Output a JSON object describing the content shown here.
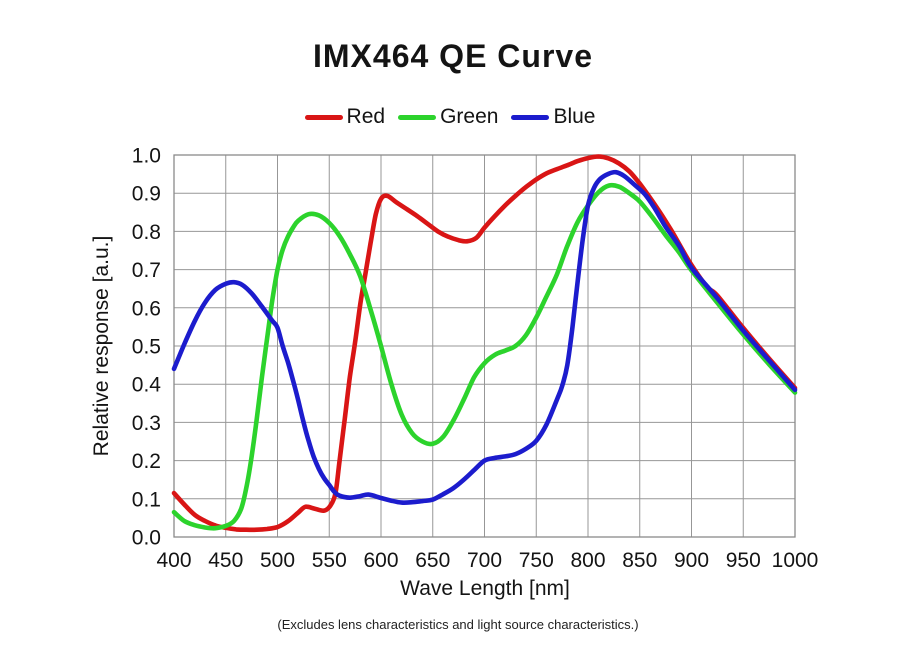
{
  "page": {
    "background": "#ffffff"
  },
  "chart_data": {
    "type": "line",
    "title": "IMX464 QE Curve",
    "xlabel": "Wave Length [nm]",
    "ylabel": "Relative response [a.u.]",
    "footnote": "(Excludes lens characteristics and light source characteristics.)",
    "xlim": [
      400,
      1000
    ],
    "ylim": [
      0.0,
      1.0
    ],
    "xticks": [
      "400",
      "450",
      "500",
      "550",
      "600",
      "650",
      "700",
      "750",
      "800",
      "850",
      "900",
      "950",
      "1000"
    ],
    "yticks": [
      "0.0",
      "0.1",
      "0.2",
      "0.3",
      "0.4",
      "0.5",
      "0.6",
      "0.7",
      "0.8",
      "0.9",
      "1.0"
    ],
    "grid": true,
    "grid_color": "#979797",
    "border_color": "#8a8a8a",
    "legend_position": "top",
    "series": [
      {
        "name": "Red",
        "color": "#d91515",
        "points": [
          [
            400,
            0.115
          ],
          [
            410,
            0.085
          ],
          [
            420,
            0.058
          ],
          [
            430,
            0.042
          ],
          [
            440,
            0.03
          ],
          [
            450,
            0.024
          ],
          [
            460,
            0.02
          ],
          [
            470,
            0.019
          ],
          [
            480,
            0.019
          ],
          [
            490,
            0.021
          ],
          [
            500,
            0.026
          ],
          [
            510,
            0.041
          ],
          [
            520,
            0.064
          ],
          [
            527,
            0.079
          ],
          [
            536,
            0.074
          ],
          [
            545,
            0.069
          ],
          [
            551,
            0.082
          ],
          [
            556,
            0.115
          ],
          [
            560,
            0.2
          ],
          [
            565,
            0.31
          ],
          [
            570,
            0.42
          ],
          [
            575,
            0.51
          ],
          [
            580,
            0.61
          ],
          [
            585,
            0.69
          ],
          [
            590,
            0.77
          ],
          [
            595,
            0.845
          ],
          [
            600,
            0.885
          ],
          [
            606,
            0.893
          ],
          [
            615,
            0.876
          ],
          [
            625,
            0.858
          ],
          [
            635,
            0.84
          ],
          [
            645,
            0.82
          ],
          [
            655,
            0.8
          ],
          [
            665,
            0.786
          ],
          [
            675,
            0.777
          ],
          [
            683,
            0.774
          ],
          [
            692,
            0.783
          ],
          [
            700,
            0.81
          ],
          [
            710,
            0.84
          ],
          [
            720,
            0.868
          ],
          [
            730,
            0.893
          ],
          [
            740,
            0.916
          ],
          [
            750,
            0.936
          ],
          [
            760,
            0.952
          ],
          [
            770,
            0.963
          ],
          [
            780,
            0.973
          ],
          [
            790,
            0.984
          ],
          [
            800,
            0.992
          ],
          [
            810,
            0.996
          ],
          [
            820,
            0.991
          ],
          [
            830,
            0.978
          ],
          [
            840,
            0.957
          ],
          [
            850,
            0.925
          ],
          [
            860,
            0.888
          ],
          [
            870,
            0.848
          ],
          [
            880,
            0.805
          ],
          [
            890,
            0.758
          ],
          [
            900,
            0.712
          ],
          [
            915,
            0.655
          ],
          [
            925,
            0.632
          ],
          [
            950,
            0.547
          ],
          [
            975,
            0.467
          ],
          [
            1000,
            0.39
          ]
        ]
      },
      {
        "name": "Green",
        "color": "#2cd32c",
        "points": [
          [
            400,
            0.065
          ],
          [
            410,
            0.042
          ],
          [
            420,
            0.031
          ],
          [
            430,
            0.025
          ],
          [
            440,
            0.023
          ],
          [
            450,
            0.029
          ],
          [
            458,
            0.042
          ],
          [
            465,
            0.075
          ],
          [
            470,
            0.13
          ],
          [
            475,
            0.21
          ],
          [
            480,
            0.31
          ],
          [
            485,
            0.42
          ],
          [
            490,
            0.52
          ],
          [
            495,
            0.62
          ],
          [
            500,
            0.7
          ],
          [
            505,
            0.752
          ],
          [
            510,
            0.786
          ],
          [
            515,
            0.81
          ],
          [
            520,
            0.828
          ],
          [
            530,
            0.845
          ],
          [
            540,
            0.842
          ],
          [
            550,
            0.822
          ],
          [
            560,
            0.788
          ],
          [
            570,
            0.74
          ],
          [
            580,
            0.682
          ],
          [
            590,
            0.595
          ],
          [
            600,
            0.5
          ],
          [
            610,
            0.4
          ],
          [
            620,
            0.32
          ],
          [
            630,
            0.272
          ],
          [
            640,
            0.25
          ],
          [
            650,
            0.244
          ],
          [
            660,
            0.262
          ],
          [
            670,
            0.305
          ],
          [
            680,
            0.36
          ],
          [
            690,
            0.418
          ],
          [
            700,
            0.455
          ],
          [
            710,
            0.477
          ],
          [
            720,
            0.488
          ],
          [
            730,
            0.5
          ],
          [
            740,
            0.528
          ],
          [
            750,
            0.575
          ],
          [
            760,
            0.63
          ],
          [
            770,
            0.688
          ],
          [
            780,
            0.762
          ],
          [
            790,
            0.825
          ],
          [
            800,
            0.868
          ],
          [
            810,
            0.902
          ],
          [
            820,
            0.92
          ],
          [
            830,
            0.917
          ],
          [
            840,
            0.9
          ],
          [
            850,
            0.878
          ],
          [
            862,
            0.838
          ],
          [
            875,
            0.79
          ],
          [
            888,
            0.745
          ],
          [
            900,
            0.698
          ],
          [
            925,
            0.613
          ],
          [
            950,
            0.53
          ],
          [
            975,
            0.452
          ],
          [
            1000,
            0.378
          ]
        ]
      },
      {
        "name": "Blue",
        "color": "#1c1ccd",
        "points": [
          [
            400,
            0.44
          ],
          [
            410,
            0.505
          ],
          [
            420,
            0.565
          ],
          [
            430,
            0.614
          ],
          [
            440,
            0.647
          ],
          [
            450,
            0.663
          ],
          [
            458,
            0.667
          ],
          [
            466,
            0.66
          ],
          [
            475,
            0.638
          ],
          [
            485,
            0.603
          ],
          [
            495,
            0.566
          ],
          [
            500,
            0.548
          ],
          [
            505,
            0.5
          ],
          [
            510,
            0.458
          ],
          [
            515,
            0.41
          ],
          [
            520,
            0.358
          ],
          [
            525,
            0.302
          ],
          [
            530,
            0.252
          ],
          [
            535,
            0.21
          ],
          [
            540,
            0.178
          ],
          [
            545,
            0.154
          ],
          [
            550,
            0.136
          ],
          [
            555,
            0.118
          ],
          [
            560,
            0.108
          ],
          [
            570,
            0.103
          ],
          [
            580,
            0.107
          ],
          [
            588,
            0.111
          ],
          [
            600,
            0.102
          ],
          [
            610,
            0.095
          ],
          [
            620,
            0.09
          ],
          [
            630,
            0.091
          ],
          [
            640,
            0.094
          ],
          [
            650,
            0.098
          ],
          [
            660,
            0.112
          ],
          [
            670,
            0.128
          ],
          [
            680,
            0.15
          ],
          [
            690,
            0.175
          ],
          [
            700,
            0.2
          ],
          [
            710,
            0.207
          ],
          [
            720,
            0.211
          ],
          [
            730,
            0.217
          ],
          [
            740,
            0.231
          ],
          [
            750,
            0.252
          ],
          [
            760,
            0.295
          ],
          [
            770,
            0.36
          ],
          [
            775,
            0.395
          ],
          [
            780,
            0.45
          ],
          [
            785,
            0.55
          ],
          [
            790,
            0.67
          ],
          [
            795,
            0.78
          ],
          [
            800,
            0.868
          ],
          [
            806,
            0.915
          ],
          [
            812,
            0.938
          ],
          [
            820,
            0.951
          ],
          [
            827,
            0.955
          ],
          [
            835,
            0.945
          ],
          [
            845,
            0.922
          ],
          [
            855,
            0.897
          ],
          [
            865,
            0.858
          ],
          [
            875,
            0.812
          ],
          [
            888,
            0.762
          ],
          [
            900,
            0.705
          ],
          [
            925,
            0.625
          ],
          [
            950,
            0.54
          ],
          [
            975,
            0.462
          ],
          [
            1000,
            0.385
          ]
        ]
      }
    ]
  }
}
